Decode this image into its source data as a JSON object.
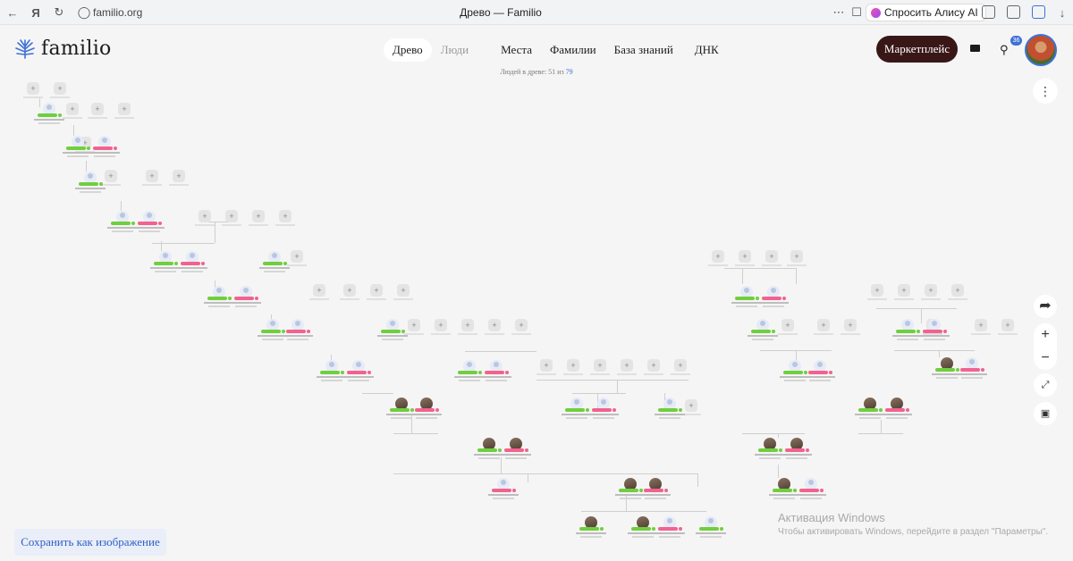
{
  "browser": {
    "url": "familio.org",
    "tab_title": "Древо — Familio",
    "alice_label": "Спросить Алису AI"
  },
  "site": {
    "logo_text": "familio",
    "nav": [
      {
        "label": "Древо",
        "state": "active"
      },
      {
        "label": "Люди",
        "state": "muted"
      },
      {
        "label": "Места",
        "state": "normal"
      },
      {
        "label": "Фамилии",
        "state": "normal"
      },
      {
        "label": "База знаний",
        "state": "normal"
      },
      {
        "label": "ДНК",
        "state": "normal"
      }
    ],
    "people_count_prefix": "Людей в древе: 51 из",
    "people_count_total": "79",
    "marketplace_label": "Маркетплейс",
    "notification_count": "36"
  },
  "actions": {
    "save_image_label": "Сохранить как изображение"
  },
  "watermark": {
    "line1": "Активация Windows",
    "line2": "Чтобы активировать Windows, перейдите в раздел \"Параметры\"."
  },
  "colors": {
    "male_tag": "#6fcf3e",
    "female_tag": "#f2628f",
    "accent_blue": "#3f71d6",
    "marketplace_bg": "#3a1717"
  }
}
